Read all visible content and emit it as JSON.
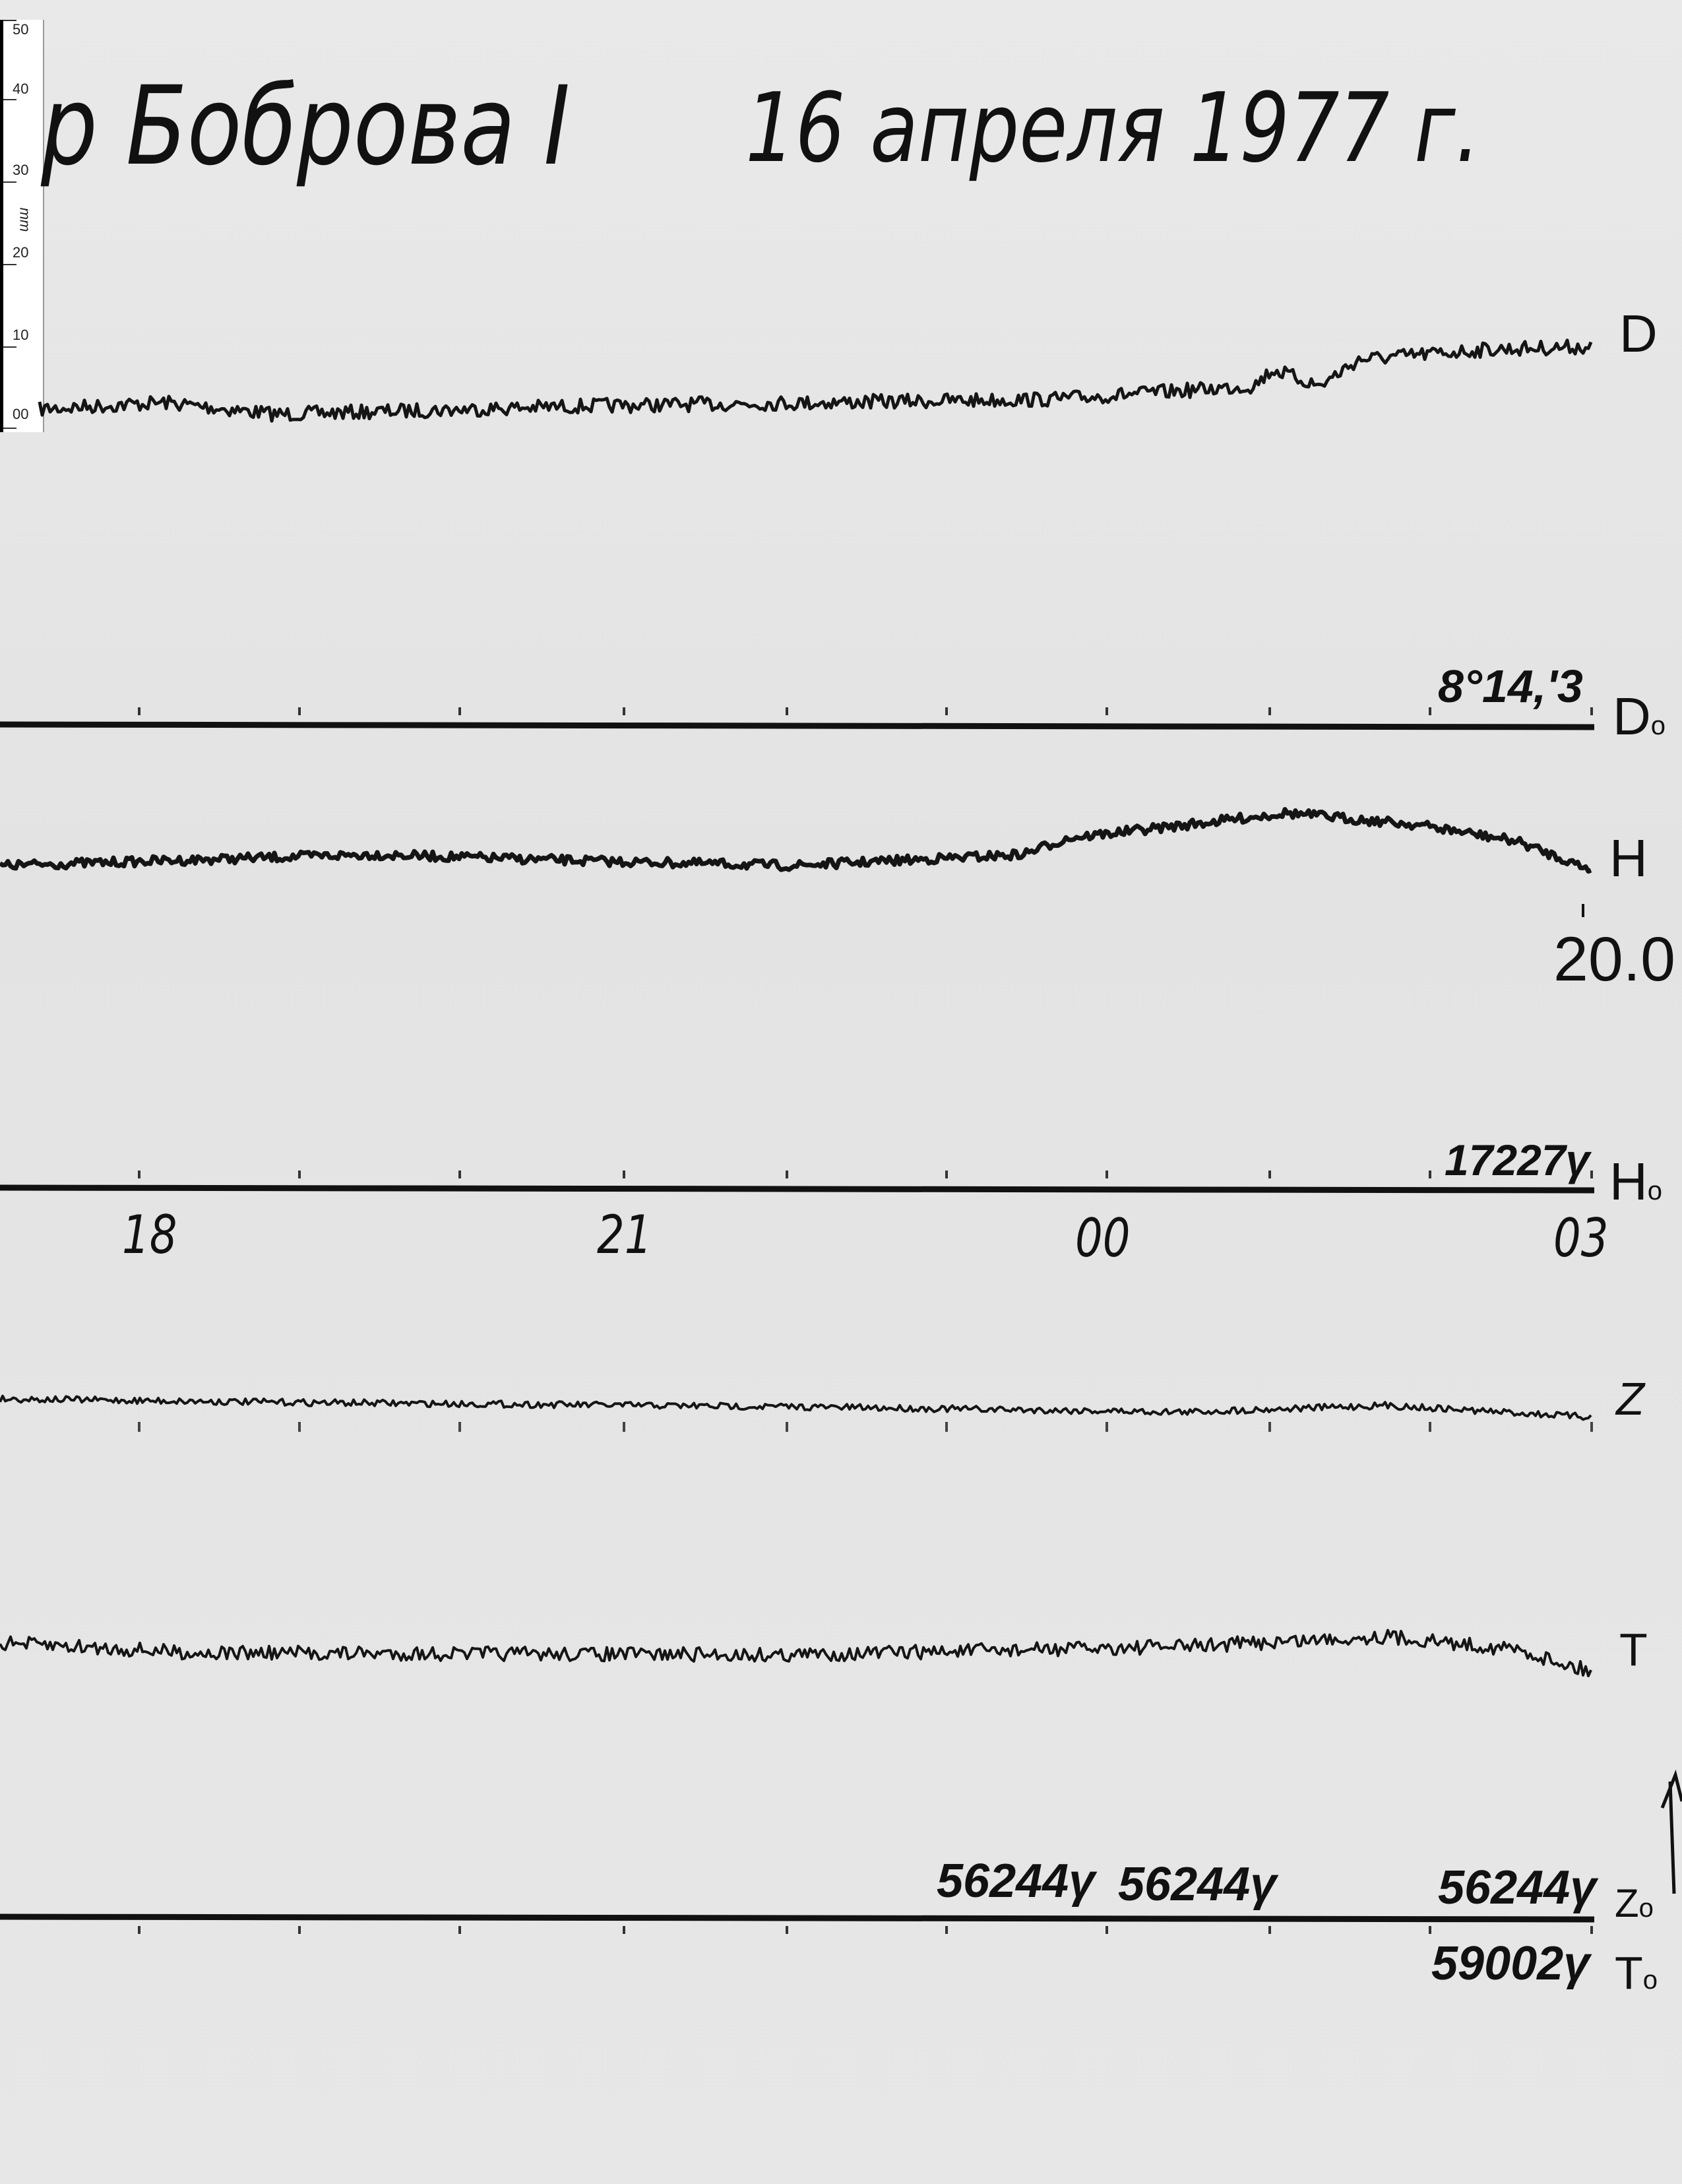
{
  "header": {
    "station": "р Боброва I",
    "date": "16 апреля 1977 г."
  },
  "ruler": {
    "labels": [
      "50",
      "40",
      "30",
      "20",
      "10",
      "00"
    ],
    "unit": "mm"
  },
  "traces": {
    "d": "D",
    "h": "H",
    "z": "Z",
    "t": "T"
  },
  "baselines": {
    "d0_label": "D",
    "d0_sub": "o",
    "d0_value": "8°14,'3",
    "h0_label": "H",
    "h0_sub": "o",
    "h0_value": "17227γ",
    "h_scale_value": "20.0",
    "z0_label": "Z",
    "z0_sub": "o",
    "t0_label": "T",
    "t0_sub": "o",
    "z0_values": [
      "56244γ",
      "56244γ",
      "56244γ"
    ],
    "t0_value": "59002γ"
  },
  "time_axis": [
    "18",
    "21",
    "00",
    "03"
  ],
  "colors": {
    "ink": "#111111",
    "paper": "#e6e6e6"
  }
}
